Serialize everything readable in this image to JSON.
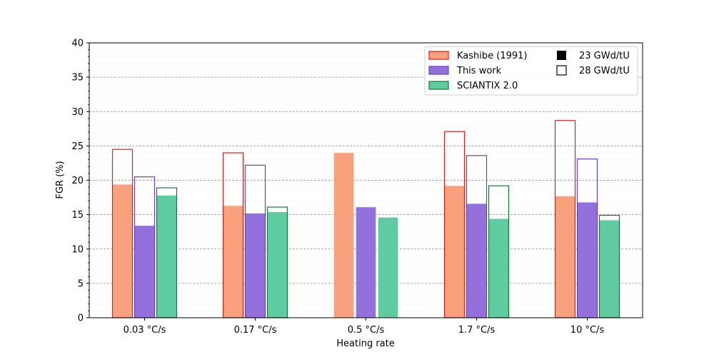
{
  "chart_data": {
    "type": "bar",
    "xlabel": "Heating rate",
    "ylabel": "FGR (%)",
    "ylim": [
      0,
      40
    ],
    "yticks": [
      0,
      5,
      10,
      15,
      20,
      25,
      30,
      35,
      40
    ],
    "grid": true,
    "legend_position": "top-right",
    "categories": [
      "0.03 °C/s",
      "0.17 °C/s",
      "0.5 °C/s",
      "1.7 °C/s",
      "10 °C/s"
    ],
    "series": [
      {
        "name": "Kashibe (1991)",
        "fill": "#f9a07d",
        "edge": "#e31a1c",
        "values_23": [
          19.4,
          16.3,
          24.0,
          19.2,
          17.7
        ],
        "values_28": [
          24.5,
          24.0,
          null,
          27.1,
          28.7
        ]
      },
      {
        "name": "This work",
        "fill": "#9370db",
        "edge": "#6a3fc0",
        "values_23": [
          13.4,
          15.2,
          16.1,
          16.6,
          16.8
        ],
        "values_28": [
          20.5,
          22.2,
          null,
          23.6,
          23.1
        ]
      },
      {
        "name": "SCIANTIX 2.0",
        "fill": "#5ecba1",
        "edge": "#137a30",
        "values_23": [
          17.8,
          15.4,
          14.6,
          14.4,
          14.2
        ],
        "values_28": [
          18.9,
          16.1,
          null,
          19.2,
          14.9
        ]
      }
    ],
    "burnup_legend": [
      "23 GWd/tU",
      "28 GWd/tU"
    ]
  }
}
